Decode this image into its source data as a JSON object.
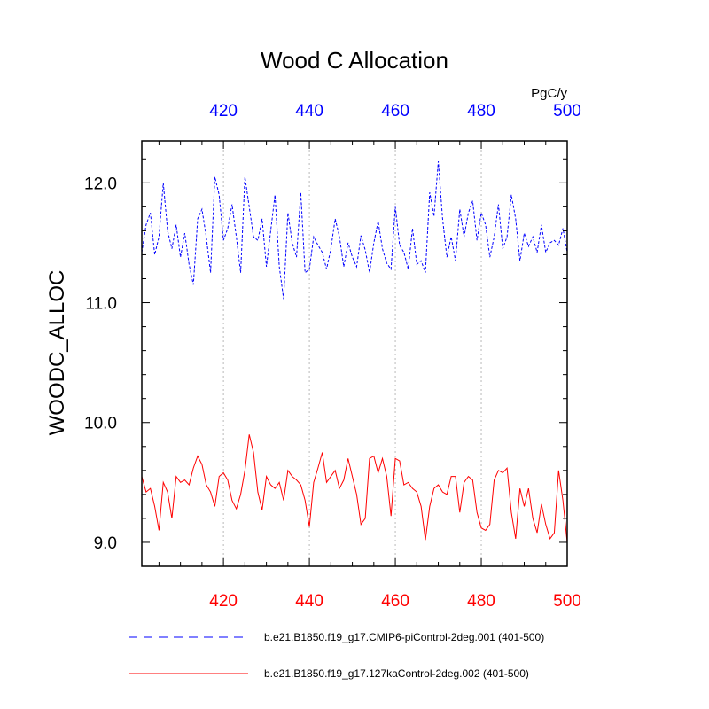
{
  "chart_data": {
    "type": "line",
    "title": "Wood C Allocation",
    "units": "PgC/y",
    "ylabel": "WOODC_ALLOC",
    "xlim": [
      401,
      500
    ],
    "ylim": [
      8.8,
      12.35
    ],
    "x_ticks": [
      "420",
      "440",
      "460",
      "480",
      "500"
    ],
    "y_ticks": [
      "9.0",
      "10.0",
      "11.0",
      "12.0"
    ],
    "grid": "vertical dotted at x ticks",
    "colors": {
      "top_axis": "#0000ff",
      "bottom_axis": "#ff0000"
    },
    "x_start": 401,
    "series": [
      {
        "name": "b.e21.B1850.f19_g17.CMIP6-piControl-2deg.001 (401-500)",
        "color": "#0000ff",
        "style": "dashed",
        "values": [
          11.42,
          11.65,
          11.75,
          11.4,
          11.55,
          12.0,
          11.6,
          11.45,
          11.65,
          11.38,
          11.58,
          11.32,
          11.15,
          11.7,
          11.78,
          11.55,
          11.25,
          12.05,
          11.9,
          11.52,
          11.62,
          11.82,
          11.55,
          11.25,
          12.05,
          11.8,
          11.55,
          11.52,
          11.7,
          11.3,
          11.6,
          11.9,
          11.3,
          11.03,
          11.75,
          11.5,
          11.38,
          11.92,
          11.25,
          11.28,
          11.55,
          11.48,
          11.42,
          11.28,
          11.45,
          11.7,
          11.55,
          11.3,
          11.5,
          11.38,
          11.3,
          11.56,
          11.44,
          11.25,
          11.5,
          11.68,
          11.45,
          11.33,
          11.28,
          11.8,
          11.48,
          11.42,
          11.28,
          11.62,
          11.32,
          11.35,
          11.25,
          11.92,
          11.72,
          12.18,
          11.7,
          11.38,
          11.55,
          11.35,
          11.78,
          11.55,
          11.75,
          11.85,
          11.52,
          11.75,
          11.65,
          11.38,
          11.55,
          11.82,
          11.45,
          11.55,
          11.9,
          11.7,
          11.35,
          11.58,
          11.47,
          11.55,
          11.42,
          11.65,
          11.42,
          11.5,
          11.52,
          11.48,
          11.62,
          11.42
        ]
      },
      {
        "name": "b.e21.B1850.f19_g17.127kaControl-2deg.002 (401-500)",
        "color": "#ff0000",
        "style": "solid",
        "values": [
          9.55,
          9.42,
          9.45,
          9.3,
          9.1,
          9.5,
          9.42,
          9.2,
          9.55,
          9.5,
          9.52,
          9.48,
          9.62,
          9.72,
          9.65,
          9.48,
          9.42,
          9.3,
          9.55,
          9.58,
          9.52,
          9.35,
          9.28,
          9.4,
          9.6,
          9.9,
          9.75,
          9.42,
          9.27,
          9.55,
          9.48,
          9.45,
          9.5,
          9.35,
          9.6,
          9.55,
          9.52,
          9.48,
          9.35,
          9.13,
          9.5,
          9.62,
          9.75,
          9.5,
          9.55,
          9.6,
          9.45,
          9.52,
          9.7,
          9.55,
          9.4,
          9.15,
          9.2,
          9.7,
          9.72,
          9.58,
          9.7,
          9.55,
          9.22,
          9.7,
          9.68,
          9.48,
          9.5,
          9.45,
          9.42,
          9.3,
          9.02,
          9.3,
          9.45,
          9.48,
          9.42,
          9.4,
          9.55,
          9.55,
          9.25,
          9.5,
          9.55,
          9.52,
          9.25,
          9.12,
          9.1,
          9.15,
          9.52,
          9.6,
          9.58,
          9.62,
          9.25,
          9.03,
          9.45,
          9.3,
          9.45,
          9.2,
          9.08,
          9.32,
          9.15,
          9.03,
          9.08,
          9.6,
          9.35,
          9.0
        ]
      }
    ]
  }
}
